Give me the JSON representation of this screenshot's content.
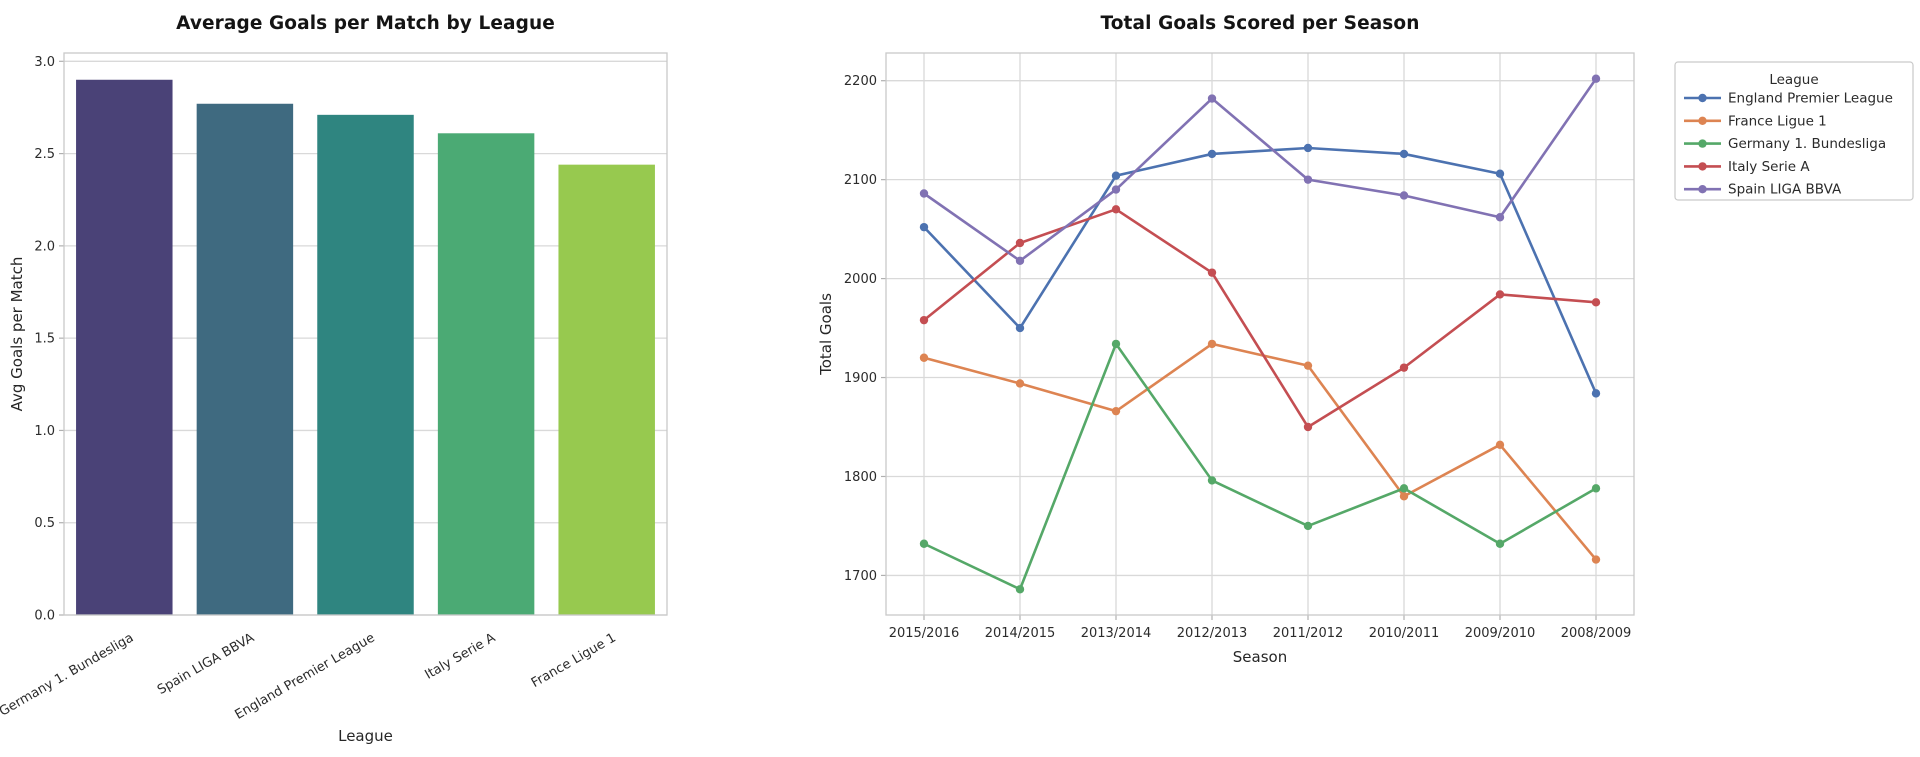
{
  "figure": {
    "background": "#ffffff",
    "text_color": "#262626",
    "grid_color": "#d9d9d9",
    "spine_color": "#c9c9c9",
    "tick_color": "#b0b0b0"
  },
  "chart_data": [
    {
      "type": "bar",
      "title": "Average Goals per Match by League",
      "xlabel": "League",
      "ylabel": "Avg Goals per Match",
      "categories": [
        "Germany 1. Bundesliga",
        "Spain LIGA BBVA",
        "England Premier League",
        "Italy Serie A",
        "France Ligue 1"
      ],
      "values": [
        2.9,
        2.77,
        2.71,
        2.61,
        2.44
      ],
      "bar_colors": [
        "#4a4277",
        "#3f6a80",
        "#2f8580",
        "#4baa74",
        "#97c94f"
      ],
      "ylim": [
        0,
        3.045
      ],
      "yticks": [
        0,
        0.5,
        1.0,
        1.5,
        2.0,
        2.5,
        3.0
      ],
      "ytick_labels": [
        "0.0",
        "0.5",
        "1.0",
        "1.5",
        "2.0",
        "2.5",
        "3.0"
      ],
      "grid": "horizontal",
      "legend": null
    },
    {
      "type": "line",
      "title": "Total Goals Scored per Season",
      "xlabel": "Season",
      "ylabel": "Total Goals",
      "categories": [
        "2015/2016",
        "2014/2015",
        "2013/2014",
        "2012/2013",
        "2011/2012",
        "2010/2011",
        "2009/2010",
        "2008/2009"
      ],
      "series": [
        {
          "name": "England Premier League",
          "color": "#4C72B0",
          "values": [
            2052,
            1950,
            2104,
            2126,
            2132,
            2126,
            2106,
            1884
          ]
        },
        {
          "name": "France Ligue 1",
          "color": "#DD8452",
          "values": [
            1920,
            1894,
            1866,
            1934,
            1912,
            1780,
            1832,
            1716
          ]
        },
        {
          "name": "Germany 1. Bundesliga",
          "color": "#55A868",
          "values": [
            1732,
            1686,
            1934,
            1796,
            1750,
            1788,
            1732,
            1788
          ]
        },
        {
          "name": "Italy Serie A",
          "color": "#C44E52",
          "values": [
            1958,
            2036,
            2070,
            2006,
            1850,
            1910,
            1984,
            1976
          ]
        },
        {
          "name": "Spain LIGA BBVA",
          "color": "#8172B3",
          "values": [
            2086,
            2018,
            2090,
            2182,
            2100,
            2084,
            2062,
            2202
          ]
        }
      ],
      "ylim": [
        1660,
        2228
      ],
      "yticks": [
        1700,
        1800,
        1900,
        2000,
        2100,
        2200
      ],
      "ytick_labels": [
        "1700",
        "1800",
        "1900",
        "2000",
        "2100",
        "2200"
      ],
      "grid": "both",
      "legend": {
        "title": "League",
        "position": "outside upper right"
      }
    }
  ]
}
